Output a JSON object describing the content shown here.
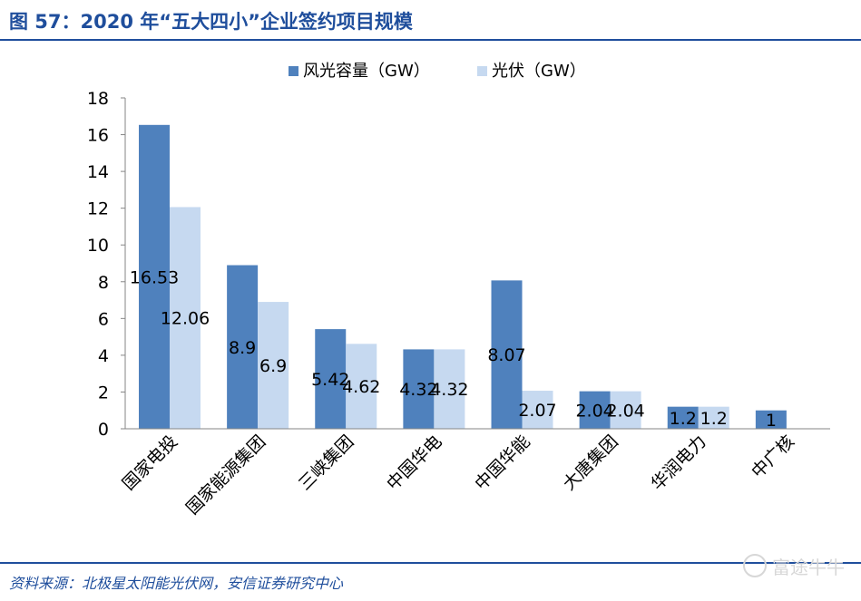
{
  "figure": {
    "title": "图 57：2020 年“五大四小”企业签约项目规模",
    "source": "资料来源：北极星太阳能光伏网，安信证券研究中心",
    "watermark": "富途牛牛"
  },
  "colors": {
    "series1": "#4f81bd",
    "series2": "#c6d9f0",
    "accent": "#1f4e9c"
  },
  "chart_data": {
    "type": "bar",
    "categories": [
      "国家电投",
      "国家能源集团",
      "三峡集团",
      "中国华电",
      "中国华能",
      "大唐集团",
      "华润电力",
      "中广核"
    ],
    "series": [
      {
        "name": "风光容量（GW）",
        "values": [
          16.53,
          8.9,
          5.42,
          4.32,
          8.07,
          2.04,
          1.2,
          1
        ]
      },
      {
        "name": "光伏（GW）",
        "values": [
          12.06,
          6.9,
          4.62,
          4.32,
          2.07,
          2.04,
          1.2,
          null
        ]
      }
    ],
    "data_labels": [
      [
        "16.53",
        "8.9",
        "5.42",
        "4.32",
        "8.07",
        "2.04",
        "1.2",
        "1"
      ],
      [
        "12.06",
        "6.9",
        "4.62",
        "4.32",
        "2.07",
        "2.04",
        "1.2",
        ""
      ]
    ],
    "yticks": [
      "0",
      "2",
      "4",
      "6",
      "8",
      "10",
      "12",
      "14",
      "16",
      "18"
    ],
    "ylim": [
      0,
      18
    ],
    "grid": false,
    "legend_position": "top"
  }
}
